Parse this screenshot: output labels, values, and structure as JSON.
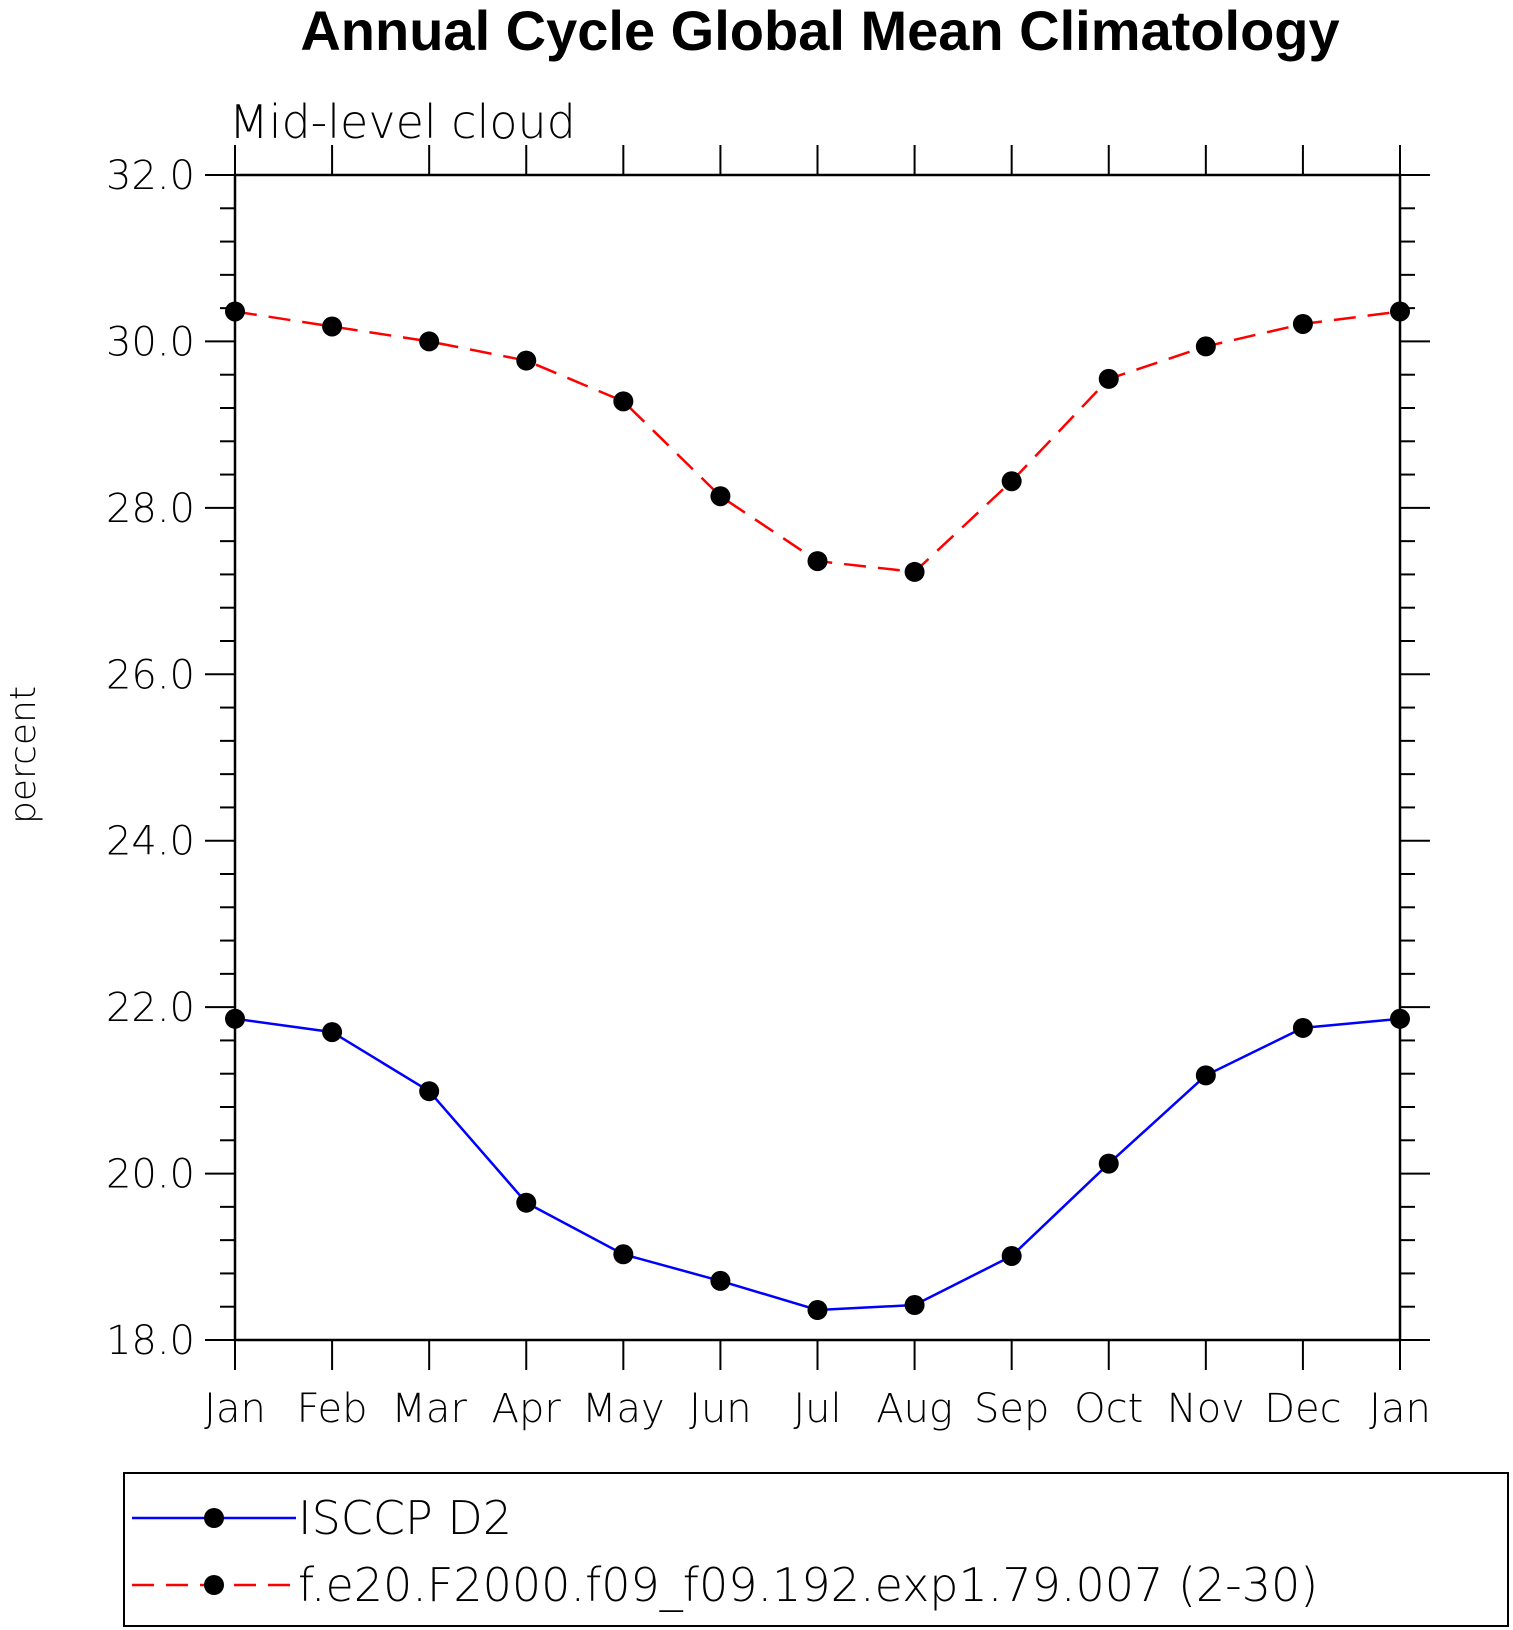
{
  "chart_data": {
    "type": "line",
    "title": "Annual Cycle Global Mean Climatology",
    "subtitle": "Mid-level cloud",
    "xlabel": "",
    "ylabel": "percent",
    "categories": [
      "Jan",
      "Feb",
      "Mar",
      "Apr",
      "May",
      "Jun",
      "Jul",
      "Aug",
      "Sep",
      "Oct",
      "Nov",
      "Dec",
      "Jan"
    ],
    "ylim": [
      18.0,
      32.0
    ],
    "yticks": [
      "18.0",
      "20.0",
      "22.0",
      "24.0",
      "26.0",
      "28.0",
      "30.0",
      "32.0"
    ],
    "grid": false,
    "legend_position": "bottom",
    "series": [
      {
        "name": "ISCCP D2",
        "color": "#0000ff",
        "style": "solid",
        "marker": "filled-circle",
        "values": [
          21.86,
          21.7,
          20.99,
          19.65,
          19.03,
          18.71,
          18.36,
          18.42,
          19.01,
          20.12,
          21.18,
          21.75,
          21.86
        ]
      },
      {
        "name": "f.e20.F2000.f09_f09.192.exp1.79.007 (2-30)",
        "color": "#ff0000",
        "style": "dashed",
        "marker": "filled-circle",
        "values": [
          30.36,
          30.18,
          30.0,
          29.77,
          29.28,
          28.14,
          27.36,
          27.23,
          28.32,
          29.55,
          29.94,
          30.21,
          30.36
        ]
      }
    ]
  }
}
